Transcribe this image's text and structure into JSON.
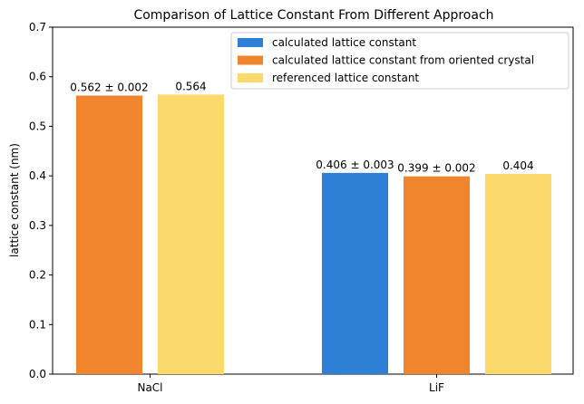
{
  "chart_data": {
    "type": "bar",
    "title": "Comparison of Lattice Constant From Different Approach",
    "xlabel": "",
    "ylabel": "lattice constant (nm)",
    "ylim": [
      0,
      0.7
    ],
    "yticks": [
      "0.0",
      "0.1",
      "0.2",
      "0.3",
      "0.4",
      "0.5",
      "0.6",
      "0.7"
    ],
    "categories": [
      "NaCl",
      "LiF"
    ],
    "grid": false,
    "legend_position": "top-right",
    "series": [
      {
        "name": "calculated lattice constant",
        "color": "#2e7fd6",
        "values": [
          null,
          0.406
        ],
        "labels": [
          "",
          "0.406 ± 0.003"
        ]
      },
      {
        "name": "calculated lattice constant from oriented crystal",
        "color": "#f0852d",
        "values": [
          0.562,
          0.399
        ],
        "labels": [
          "0.562 ± 0.002",
          "0.399 ± 0.002"
        ]
      },
      {
        "name": "referenced lattice constant",
        "color": "#fcd96b",
        "values": [
          0.564,
          0.404
        ],
        "labels": [
          "0.564",
          "0.404"
        ]
      }
    ]
  }
}
